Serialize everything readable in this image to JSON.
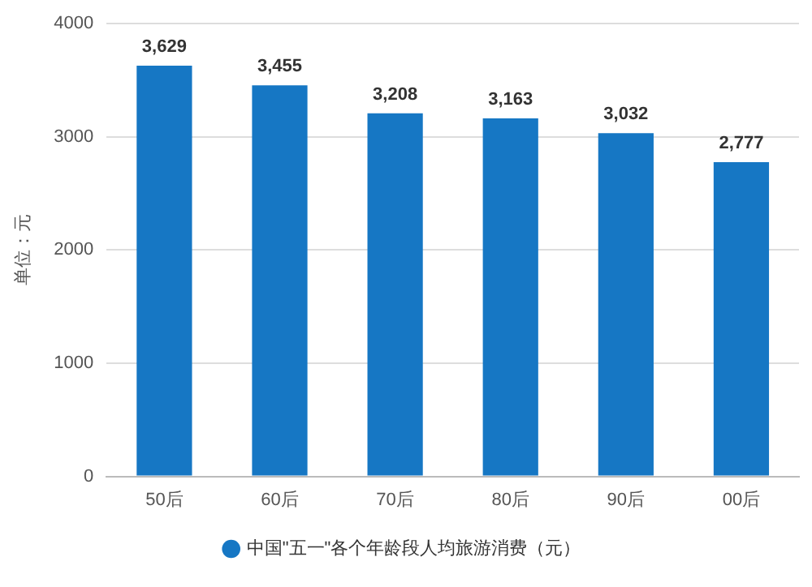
{
  "chart_data": {
    "type": "bar",
    "ylabel": "单位：元",
    "categories": [
      "50后",
      "60后",
      "70后",
      "80后",
      "90后",
      "00后"
    ],
    "series": [
      {
        "name": "中国\"五一\"各个年龄段人均旅游消费（元）",
        "color": "#1677c4",
        "values": [
          3629,
          3455,
          3208,
          3163,
          3032,
          2777
        ],
        "value_labels": [
          "3,629",
          "3,455",
          "3,208",
          "3,163",
          "3,032",
          "2,777"
        ]
      }
    ],
    "ylim": [
      0,
      4000
    ],
    "yticks": [
      0,
      1000,
      2000,
      3000,
      4000
    ],
    "grid": "y",
    "legend": "bottom"
  }
}
